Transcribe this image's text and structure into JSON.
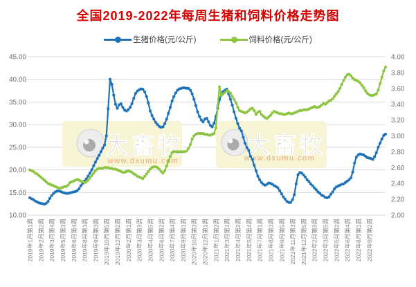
{
  "header": {
    "title": "全国2019-2022年每周生猪和饲料价格走势图",
    "title_color": "#D40000"
  },
  "legend": {
    "items": [
      {
        "label": "生猪价格(元/公斤)",
        "color": "#1E73B8"
      },
      {
        "label": "饲料价格(元/公斤)",
        "color": "#8CC540"
      }
    ]
  },
  "watermark": {
    "brand": "大畜牧",
    "url": "www.dxumu.com",
    "bg": "#F6F4D2",
    "text_color": "#C9C9C9",
    "url_color": "#E8A878",
    "logo_icon": "eye-circle-logo"
  },
  "chart_data": {
    "type": "line",
    "title": "全国2019-2022年每周生猪和饲料价格走势图",
    "grid": true,
    "legend_position": "top",
    "x_label_interval": 6,
    "x_labels": [
      "2019年1月第1周",
      "2019年2月第2周",
      "2019年3月第4周",
      "2019年5月第3周",
      "2019年6月第4周",
      "2019年8月第1周",
      "2019年9月第3周",
      "2019年10月第5周",
      "2019年12月第2周",
      "2020年2月第1周",
      "2020年3月第3周",
      "2020年4月第5周",
      "2020年6月第2周",
      "2020年7月第4周",
      "2020年9月第1周",
      "2020年10月第3周",
      "2020年12月第1周",
      "2021年1月第2周",
      "2021年3月第1周",
      "2021年4月第2周",
      "2021年5月第4周",
      "2021年7月第1周",
      "2021年8月第3周",
      "2021年9月第5周",
      "2021年11月第3周",
      "2021年12月第5周",
      "2022年2月第3周",
      "2022年3月第5周",
      "2022年5月第2周",
      "2022年6月第4周",
      "2022年8月第1周",
      "2022年9月第2周"
    ],
    "left_axis": {
      "min": 10,
      "max": 45,
      "step": 5,
      "ticks": [
        "10.00",
        "15.00",
        "20.00",
        "25.00",
        "30.00",
        "35.00",
        "40.00",
        "45.00"
      ],
      "label_color": "#6E6E6E"
    },
    "right_axis": {
      "min": 2,
      "max": 4,
      "step": 0.2,
      "ticks": [
        "2.00",
        "2.20",
        "2.40",
        "2.60",
        "2.80",
        "3.00",
        "3.20",
        "3.40",
        "3.60",
        "3.80",
        "4.00"
      ],
      "label_color": "#6E6E6E"
    },
    "series": [
      {
        "name": "生猪价格(元/公斤)",
        "axis": "left",
        "color": "#1E73B8",
        "values": [
          13.8,
          13.6,
          13.4,
          13.1,
          12.9,
          12.7,
          12.6,
          12.5,
          12.4,
          12.6,
          13.0,
          13.7,
          14.3,
          14.8,
          15.1,
          15.3,
          15.3,
          15.2,
          15.0,
          14.9,
          14.8,
          14.8,
          14.9,
          15.0,
          15.1,
          15.2,
          15.4,
          15.8,
          16.5,
          17.0,
          17.5,
          18.0,
          18.6,
          19.3,
          20.0,
          20.9,
          21.7,
          22.5,
          23.2,
          24.0,
          24.8,
          25.5,
          27.5,
          33.5,
          40.0,
          38.9,
          36.5,
          34.5,
          33.6,
          34.4,
          34.6,
          33.8,
          33.2,
          33.0,
          33.3,
          33.8,
          34.6,
          35.8,
          36.9,
          37.4,
          37.7,
          37.9,
          37.8,
          37.2,
          36.2,
          34.8,
          33.0,
          32.0,
          31.2,
          30.5,
          30.0,
          29.6,
          29.4,
          29.5,
          30.2,
          31.2,
          32.5,
          33.8,
          35.2,
          36.2,
          37.0,
          37.6,
          37.9,
          38.0,
          38.1,
          38.1,
          38.0,
          38.0,
          37.6,
          36.8,
          35.6,
          34.2,
          32.8,
          31.8,
          31.0,
          30.6,
          31.2,
          31.4,
          30.6,
          29.8,
          29.5,
          30.3,
          31.8,
          33.6,
          35.5,
          36.8,
          37.3,
          37.6,
          37.8,
          36.8,
          35.6,
          34.3,
          32.8,
          31.4,
          30.2,
          29.2,
          28.6,
          27.2,
          25.9,
          24.9,
          24.3,
          23.0,
          22.3,
          21.0,
          19.8,
          18.6,
          17.8,
          17.2,
          16.8,
          16.6,
          16.8,
          17.1,
          17.0,
          16.8,
          16.5,
          16.3,
          16.0,
          15.4,
          14.7,
          14.0,
          13.5,
          13.0,
          12.8,
          12.8,
          13.4,
          14.5,
          16.9,
          18.9,
          19.4,
          19.3,
          18.9,
          18.4,
          17.8,
          17.4,
          16.9,
          16.5,
          16.0,
          15.6,
          15.1,
          14.8,
          14.4,
          14.2,
          13.9,
          13.8,
          14.0,
          14.6,
          15.1,
          15.8,
          16.2,
          16.4,
          16.6,
          16.8,
          16.9,
          17.2,
          17.5,
          17.8,
          18.2,
          19.5,
          21.5,
          22.8,
          23.3,
          23.5,
          23.4,
          23.3,
          23.0,
          22.7,
          22.6,
          22.5,
          22.3,
          22.9,
          23.8,
          25.0,
          25.9,
          26.8,
          27.6,
          27.9
        ]
      },
      {
        "name": "饲料价格(元/公斤)",
        "axis": "right",
        "color": "#8CC540",
        "values": [
          2.57,
          2.56,
          2.55,
          2.53,
          2.52,
          2.5,
          2.48,
          2.46,
          2.44,
          2.42,
          2.4,
          2.39,
          2.38,
          2.37,
          2.36,
          2.35,
          2.34,
          2.34,
          2.35,
          2.36,
          2.36,
          2.38,
          2.41,
          2.42,
          2.43,
          2.44,
          2.45,
          2.44,
          2.43,
          2.42,
          2.41,
          2.42,
          2.44,
          2.47,
          2.5,
          2.53,
          2.56,
          2.58,
          2.59,
          2.59,
          2.59,
          2.6,
          2.6,
          2.6,
          2.59,
          2.59,
          2.58,
          2.58,
          2.57,
          2.56,
          2.55,
          2.54,
          2.54,
          2.55,
          2.56,
          2.55,
          2.54,
          2.52,
          2.51,
          2.49,
          2.48,
          2.47,
          2.46,
          2.49,
          2.52,
          2.55,
          2.58,
          2.6,
          2.61,
          2.61,
          2.6,
          2.58,
          2.55,
          2.53,
          2.56,
          2.62,
          2.68,
          2.74,
          2.79,
          2.8,
          2.8,
          2.8,
          2.8,
          2.8,
          2.8,
          2.8,
          2.81,
          2.84,
          2.89,
          2.96,
          3.0,
          3.02,
          3.03,
          3.03,
          3.03,
          3.03,
          3.02,
          3.02,
          3.01,
          3.01,
          3.02,
          3.03,
          3.1,
          3.38,
          3.62,
          3.51,
          3.53,
          3.55,
          3.57,
          3.56,
          3.54,
          3.5,
          3.46,
          3.42,
          3.36,
          3.32,
          3.31,
          3.3,
          3.29,
          3.3,
          3.32,
          3.34,
          3.35,
          3.32,
          3.27,
          3.3,
          3.31,
          3.27,
          3.25,
          3.23,
          3.22,
          3.24,
          3.26,
          3.29,
          3.31,
          3.3,
          3.29,
          3.28,
          3.28,
          3.27,
          3.27,
          3.28,
          3.29,
          3.28,
          3.28,
          3.29,
          3.3,
          3.31,
          3.32,
          3.32,
          3.33,
          3.33,
          3.33,
          3.34,
          3.35,
          3.36,
          3.37,
          3.36,
          3.36,
          3.37,
          3.39,
          3.41,
          3.4,
          3.42,
          3.44,
          3.45,
          3.47,
          3.5,
          3.53,
          3.56,
          3.6,
          3.65,
          3.7,
          3.74,
          3.77,
          3.78,
          3.76,
          3.73,
          3.71,
          3.7,
          3.69,
          3.67,
          3.64,
          3.61,
          3.57,
          3.54,
          3.52,
          3.51,
          3.51,
          3.52,
          3.53,
          3.58,
          3.66,
          3.74,
          3.82,
          3.87
        ]
      }
    ]
  }
}
